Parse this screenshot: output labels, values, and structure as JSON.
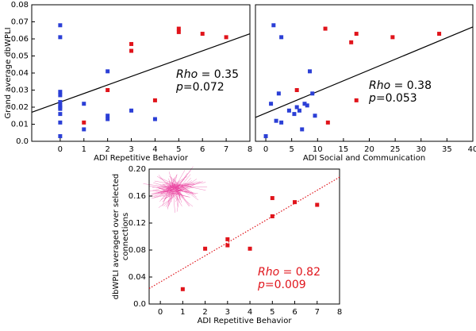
{
  "chart_data": [
    {
      "type": "scatter",
      "ylabel": [
        "Grand average dbWPLI"
      ],
      "xlabel": "ADI Repetitive Behavior",
      "xlim": [
        -1.2,
        8
      ],
      "xticks": [
        0,
        1,
        2,
        3,
        4,
        5,
        6,
        7,
        8
      ],
      "ylim": [
        0,
        0.08
      ],
      "yticks": [
        {
          "value": 0,
          "label": "0.0"
        },
        0.01,
        0.02,
        0.03,
        0.04,
        0.05,
        0.06,
        0.07,
        0.08
      ],
      "series": [
        {
          "color": "#2b3fd6",
          "x": [
            0,
            0,
            0,
            0,
            0,
            0,
            0,
            0,
            0,
            0,
            0,
            1,
            1,
            2,
            2,
            2,
            3,
            4
          ],
          "values": [
            0.068,
            0.061,
            0.029,
            0.027,
            0.023,
            0.021,
            0.02,
            0.019,
            0.016,
            0.011,
            0.003,
            0.022,
            0.007,
            0.041,
            0.015,
            0.013,
            0.018,
            0.013
          ]
        },
        {
          "color": "#e0141b",
          "x": [
            1,
            2,
            3,
            3,
            4,
            5,
            5,
            6,
            7
          ],
          "values": [
            0.011,
            0.03,
            0.057,
            0.053,
            0.024,
            0.066,
            0.064,
            0.063,
            0.061
          ]
        }
      ],
      "trend": {
        "x": [
          -1.2,
          8
        ],
        "y": [
          0.017,
          0.063
        ],
        "color": "#000000",
        "style": "solid"
      },
      "annotation": {
        "rho_label": "Rho",
        "rho": " = 0.35",
        "p_label": "p",
        "p": "=0.072",
        "color": "#000000"
      }
    },
    {
      "type": "scatter",
      "ylabel": [],
      "xlabel": "ADI Social and Communication",
      "xlim": [
        -2,
        40
      ],
      "xticks": [
        0,
        5,
        10,
        15,
        20,
        25,
        30,
        35,
        40
      ],
      "ylim": [
        0,
        0.08
      ],
      "yticks": [],
      "series": [
        {
          "color": "#2b3fd6",
          "x": [
            0,
            1,
            1.5,
            2,
            2.5,
            3,
            3,
            4.5,
            5.5,
            6,
            6.5,
            7,
            7.5,
            8,
            8.5,
            9,
            9.5
          ],
          "values": [
            0.003,
            0.022,
            0.068,
            0.012,
            0.028,
            0.061,
            0.011,
            0.018,
            0.016,
            0.02,
            0.018,
            0.007,
            0.022,
            0.021,
            0.041,
            0.028,
            0.015
          ]
        },
        {
          "color": "#e0141b",
          "x": [
            6,
            11.5,
            12,
            16.5,
            17.5,
            17.5,
            24.5,
            33.5
          ],
          "values": [
            0.03,
            0.066,
            0.011,
            0.058,
            0.063,
            0.024,
            0.061,
            0.063
          ]
        }
      ],
      "trend": {
        "x": [
          -2,
          40
        ],
        "y": [
          0.014,
          0.067
        ],
        "color": "#000000",
        "style": "solid"
      },
      "annotation": {
        "rho_label": "Rho",
        "rho": " = 0.38",
        "p_label": "p",
        "p": "=0.053",
        "color": "#000000"
      }
    },
    {
      "type": "scatter",
      "ylabel": [
        "dbWPLI averaged over selected",
        "connections"
      ],
      "xlabel": "ADI Repetitive Behavior",
      "xlim": [
        -0.5,
        8
      ],
      "xticks": [
        0,
        1,
        2,
        3,
        4,
        5,
        6,
        7,
        8
      ],
      "ylim": [
        0,
        0.2
      ],
      "yticks": [
        {
          "value": 0,
          "label": "0.0"
        },
        0.04,
        0.08,
        0.12,
        0.16,
        {
          "value": 0.2,
          "label": "0.20"
        }
      ],
      "series": [
        {
          "color": "#e0141b",
          "x": [
            1,
            2,
            3,
            3,
            4,
            5,
            5,
            6,
            7
          ],
          "values": [
            0.022,
            0.082,
            0.096,
            0.087,
            0.082,
            0.157,
            0.13,
            0.151,
            0.147
          ]
        }
      ],
      "trend": {
        "x": [
          -0.5,
          8
        ],
        "y": [
          0.023,
          0.188
        ],
        "color": "#e0141b",
        "style": "dotted"
      },
      "annotation": {
        "rho_label": "Rho",
        "rho": " = 0.82",
        "p_label": "p",
        "p": "=0.009",
        "color": "#e0141b"
      }
    }
  ]
}
